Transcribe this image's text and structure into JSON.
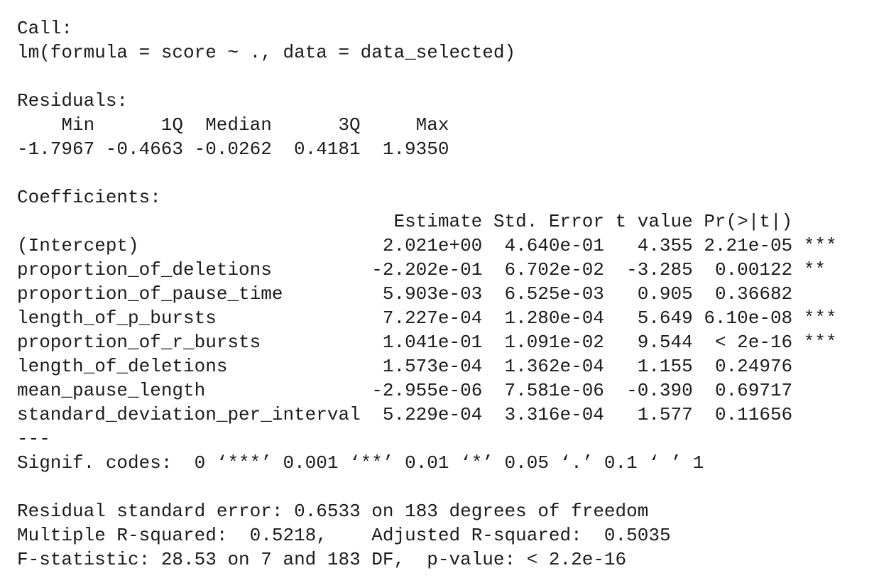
{
  "call": {
    "label": "Call:",
    "formula": "lm(formula = score ~ ., data = data_selected)"
  },
  "residuals": {
    "label": "Residuals:",
    "headers": [
      "Min",
      "1Q",
      "Median",
      "3Q",
      "Max"
    ],
    "values": [
      "-1.7967",
      "-0.4663",
      "-0.0262",
      "0.4181",
      "1.9350"
    ]
  },
  "coefficients": {
    "label": "Coefficients:",
    "headers": [
      "Estimate",
      "Std. Error",
      "t value",
      "Pr(>|t|)"
    ],
    "rows": [
      {
        "term": "(Intercept)",
        "cells": [
          "2.021e+00",
          "4.640e-01",
          "4.355",
          "2.21e-05"
        ],
        "signif": "***"
      },
      {
        "term": "proportion_of_deletions",
        "cells": [
          "-2.202e-01",
          "6.702e-02",
          "-3.285",
          "0.00122"
        ],
        "signif": "**"
      },
      {
        "term": "proportion_of_pause_time",
        "cells": [
          "5.903e-03",
          "6.525e-03",
          "0.905",
          "0.36682"
        ]
      },
      {
        "term": "length_of_p_bursts",
        "cells": [
          "7.227e-04",
          "1.280e-04",
          "5.649",
          "6.10e-08"
        ],
        "signif": "***"
      },
      {
        "term": "proportion_of_r_bursts",
        "cells": [
          "1.041e-01",
          "1.091e-02",
          "9.544",
          "< 2e-16"
        ],
        "signif": "***"
      },
      {
        "term": "length_of_deletions",
        "cells": [
          "1.573e-04",
          "1.362e-04",
          "1.155",
          "0.24976"
        ]
      },
      {
        "term": "mean_pause_length",
        "cells": [
          "-2.955e-06",
          "7.581e-06",
          "-0.390",
          "0.69717"
        ]
      },
      {
        "term": "standard_deviation_per_interval",
        "cells": [
          "5.229e-04",
          "3.316e-04",
          "1.577",
          "0.11656"
        ]
      }
    ]
  },
  "separator": "---",
  "signif_codes": "Signif. codes:  0 ‘***’ 0.001 ‘**’ 0.01 ‘*’ 0.05 ‘.’ 0.1 ‘ ’ 1",
  "summary": [
    "Residual standard error: 0.6533 on 183 degrees of freedom",
    "Multiple R-squared:  0.5218,    Adjusted R-squared:  0.5035",
    "F-statistic: 28.53 on 7 and 183 DF,  p-value: < 2.2e-16"
  ]
}
